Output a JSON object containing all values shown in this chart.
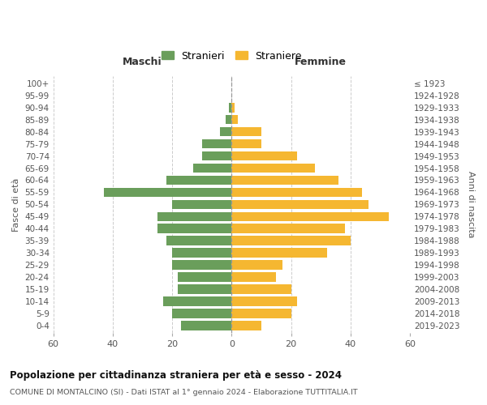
{
  "age_groups": [
    "0-4",
    "5-9",
    "10-14",
    "15-19",
    "20-24",
    "25-29",
    "30-34",
    "35-39",
    "40-44",
    "45-49",
    "50-54",
    "55-59",
    "60-64",
    "65-69",
    "70-74",
    "75-79",
    "80-84",
    "85-89",
    "90-94",
    "95-99",
    "100+"
  ],
  "birth_years": [
    "2019-2023",
    "2014-2018",
    "2009-2013",
    "2004-2008",
    "1999-2003",
    "1994-1998",
    "1989-1993",
    "1984-1988",
    "1979-1983",
    "1974-1978",
    "1969-1973",
    "1964-1968",
    "1959-1963",
    "1954-1958",
    "1949-1953",
    "1944-1948",
    "1939-1943",
    "1934-1938",
    "1929-1933",
    "1924-1928",
    "≤ 1923"
  ],
  "males": [
    17,
    20,
    23,
    18,
    18,
    20,
    20,
    22,
    25,
    25,
    20,
    43,
    22,
    13,
    10,
    10,
    4,
    2,
    1,
    0,
    0
  ],
  "females": [
    10,
    20,
    22,
    20,
    15,
    17,
    32,
    40,
    38,
    53,
    46,
    44,
    36,
    28,
    22,
    10,
    10,
    2,
    1,
    0,
    0
  ],
  "male_color": "#6a9e5b",
  "female_color": "#f5b731",
  "male_label": "Stranieri",
  "female_label": "Straniere",
  "title": "Popolazione per cittadinanza straniera per età e sesso - 2024",
  "subtitle": "COMUNE DI MONTALCINO (SI) - Dati ISTAT al 1° gennaio 2024 - Elaborazione TUTTITALIA.IT",
  "xlim": 60,
  "xlabel_left": "Maschi",
  "xlabel_right": "Femmine",
  "ylabel_left": "Fasce di età",
  "ylabel_right": "Anni di nascita",
  "bg_color": "#ffffff",
  "grid_color": "#cccccc"
}
